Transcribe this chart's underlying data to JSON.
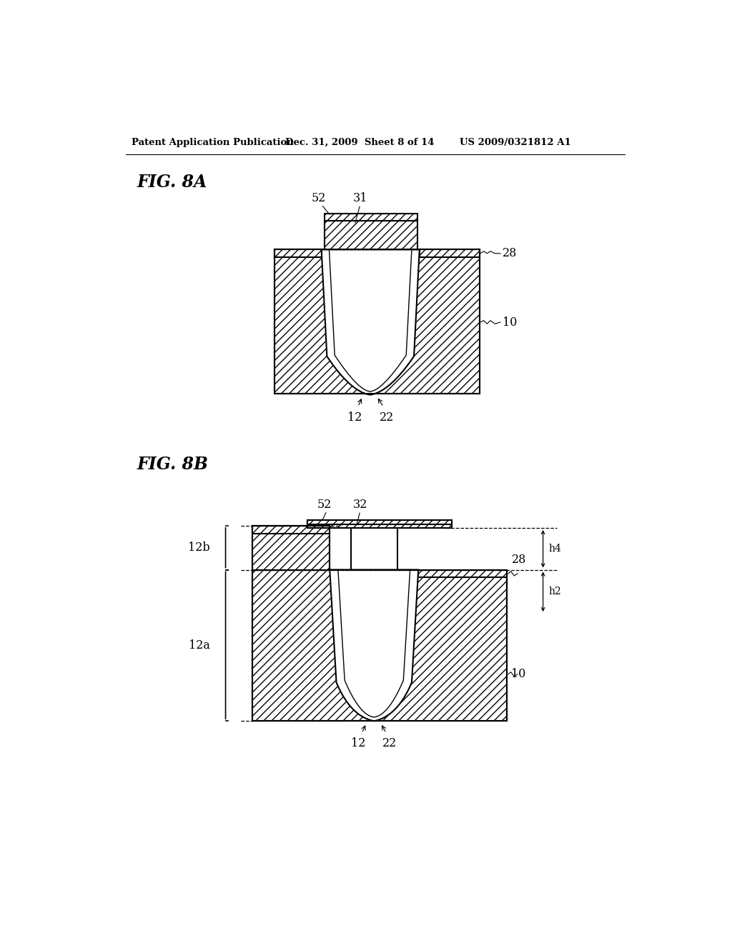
{
  "bg_color": "#ffffff",
  "header_left": "Patent Application Publication",
  "header_center": "Dec. 31, 2009  Sheet 8 of 14",
  "header_right": "US 2009/0321812 A1",
  "fig_label_A": "FIG. 8A",
  "fig_label_B": "FIG. 8B",
  "line_color": "#000000"
}
